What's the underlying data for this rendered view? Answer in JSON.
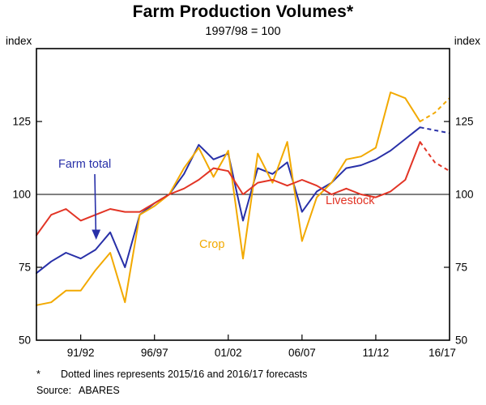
{
  "title": "Farm Production Volumes*",
  "subtitle": "1997/98 = 100",
  "y_axis_label_left": "index",
  "y_axis_label_right": "index",
  "footnote_marker": "*",
  "footnote_text": "Dotted lines represents 2015/16 and 2016/17 forecasts",
  "source_label": "Source:",
  "source_value": "ABARES",
  "chart_data": {
    "type": "line",
    "title": "Farm Production Volumes*",
    "subtitle": "1997/98 = 100",
    "ylabel": "index",
    "ylim": [
      50,
      150
    ],
    "y_ticks": [
      50,
      75,
      100,
      125
    ],
    "reference_line": 100,
    "grid": "off",
    "legend_position": "inline-annotations",
    "x_years": [
      "88/89",
      "89/90",
      "90/91",
      "91/92",
      "92/93",
      "93/94",
      "94/95",
      "95/96",
      "96/97",
      "97/98",
      "98/99",
      "99/00",
      "00/01",
      "01/02",
      "02/03",
      "03/04",
      "04/05",
      "05/06",
      "06/07",
      "07/08",
      "08/09",
      "09/10",
      "10/11",
      "11/12",
      "12/13",
      "13/14",
      "14/15",
      "15/16",
      "16/17"
    ],
    "x_tick_labels": [
      "91/92",
      "96/97",
      "01/02",
      "06/07",
      "11/12",
      "16/17"
    ],
    "x_tick_indices": [
      3,
      8,
      13,
      18,
      23,
      28
    ],
    "forecast_start_index": 26,
    "forecast_note": "2015/16 and 2016/17 values are forecasts shown as dotted lines",
    "series": [
      {
        "name": "Farm total",
        "color": "#2830A8",
        "values": [
          73,
          77,
          80,
          78,
          81,
          87,
          75,
          93,
          97,
          100,
          107,
          117,
          112,
          114,
          91,
          109,
          107,
          111,
          94,
          101,
          104,
          109,
          110,
          112,
          115,
          119,
          123,
          122,
          121
        ]
      },
      {
        "name": "Crop",
        "color": "#F2A900",
        "values": [
          62,
          63,
          67,
          67,
          74,
          80,
          63,
          93,
          96,
          100,
          109,
          116,
          106,
          115,
          78,
          114,
          104,
          118,
          84,
          99,
          104,
          112,
          113,
          116,
          135,
          133,
          125,
          128,
          133
        ]
      },
      {
        "name": "Livestock",
        "color": "#E23425",
        "values": [
          86,
          93,
          95,
          91,
          93,
          95,
          94,
          94,
          97,
          100,
          102,
          105,
          109,
          108,
          100,
          104,
          105,
          103,
          105,
          103,
          100,
          102,
          100,
          99,
          101,
          105,
          118,
          111,
          108
        ]
      }
    ]
  }
}
